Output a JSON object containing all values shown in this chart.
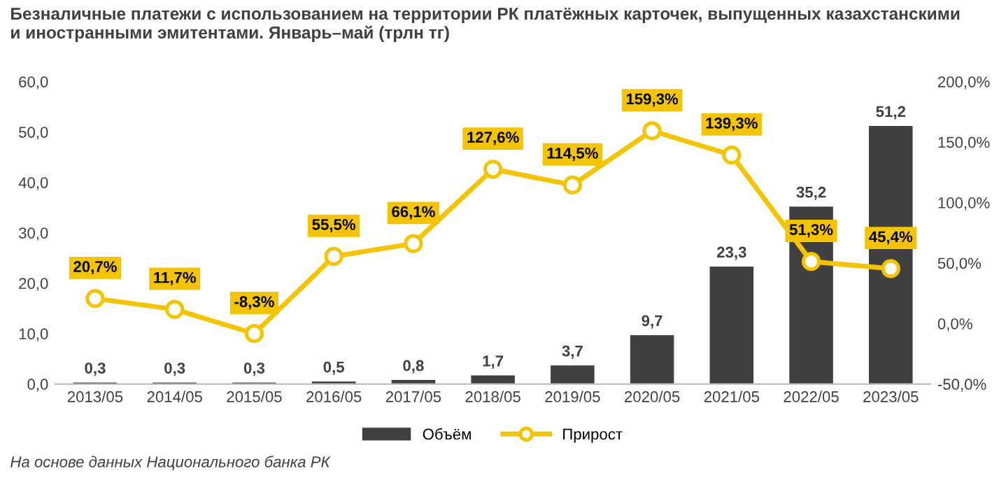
{
  "chart_data": {
    "type": "bar",
    "title": "Безналичные платежи с использованием на территории РК платёжных карточек, выпущенных казахстанскими\nи иностранными эмитентами. Январь–май (трлн тг)",
    "categories": [
      "2013/05",
      "2014/05",
      "2015/05",
      "2016/05",
      "2017/05",
      "2018/05",
      "2019/05",
      "2020/05",
      "2021/05",
      "2022/05",
      "2023/05"
    ],
    "series": [
      {
        "name": "Объём",
        "color": "#404040",
        "values": [
          0.3,
          0.3,
          0.3,
          0.5,
          0.8,
          1.7,
          3.7,
          9.7,
          23.3,
          35.2,
          51.2
        ],
        "value_labels": [
          "0,3",
          "0,3",
          "0,3",
          "0,5",
          "0,8",
          "1,7",
          "3,7",
          "9,7",
          "23,3",
          "35,2",
          "51,2"
        ]
      },
      {
        "name": "Прирост",
        "type": "line",
        "axis": "y2",
        "color": "#f5c400",
        "marker": "circle",
        "values": [
          20.7,
          11.7,
          -8.3,
          55.5,
          66.1,
          127.6,
          114.5,
          159.3,
          139.3,
          51.3,
          45.4
        ],
        "value_labels": [
          "20,7%",
          "11,7%",
          "-8,3%",
          "55,5%",
          "66,1%",
          "127,6%",
          "114,5%",
          "159,3%",
          "139,3%",
          "51,3%",
          "45,4%"
        ]
      }
    ],
    "ylim": [
      0,
      60
    ],
    "yticks": [
      {
        "value": 0,
        "label": "0,0"
      },
      {
        "value": 10,
        "label": "10,0"
      },
      {
        "value": 20,
        "label": "20,0"
      },
      {
        "value": 30,
        "label": "30,0"
      },
      {
        "value": 40,
        "label": "40,0"
      },
      {
        "value": 50,
        "label": "50,0"
      },
      {
        "value": 60,
        "label": "60,0"
      }
    ],
    "y2lim": [
      -50,
      200
    ],
    "y2ticks": [
      {
        "value": -50,
        "label": "-50,0%"
      },
      {
        "value": 0,
        "label": "0,0%"
      },
      {
        "value": 50,
        "label": "50,0%"
      },
      {
        "value": 100,
        "label": "100,0%"
      },
      {
        "value": 150,
        "label": "150,0%"
      },
      {
        "value": 200,
        "label": "200,0%"
      }
    ],
    "legend": "bottom",
    "grid": false,
    "annotations": [
      "На основе данных Национального банка РК"
    ]
  }
}
